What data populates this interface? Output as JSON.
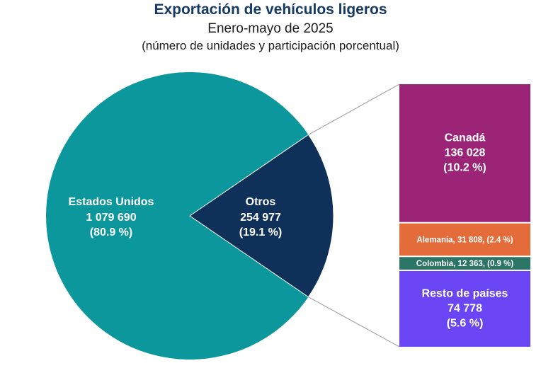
{
  "title": "Exportación de vehículos ligeros",
  "subtitle": "Enero-mayo de 2025",
  "subtitle2": "(número de unidades y participación porcentual)",
  "chart_data": [
    {
      "type": "pie",
      "title": "Exportación de vehículos ligeros",
      "slices": [
        {
          "name": "Estados Unidos",
          "value": 1079690,
          "label_value": "1 079 690",
          "label_pct": "(80.9 %)",
          "percent": 80.9,
          "color": "#0b979c"
        },
        {
          "name": "Otros",
          "value": 254977,
          "label_value": "254 977",
          "label_pct": "(19.1 %)",
          "percent": 19.1,
          "color": "#0e3059"
        }
      ]
    },
    {
      "type": "bar",
      "stacked": true,
      "breakdown_of": "Otros",
      "segments": [
        {
          "name": "Canadá",
          "value": 136028,
          "label_value": "136 028",
          "label_pct": "(10.2 %)",
          "percent": 10.2,
          "color": "#9b2476"
        },
        {
          "name": "Alemania",
          "value": 31808,
          "label_inline": "Alemania, 31 808, (2.4 %)",
          "percent": 2.4,
          "color": "#e46c3a"
        },
        {
          "name": "Colombia",
          "value": 12363,
          "label_inline": "Colombia,  12 363, (0.9 %)",
          "percent": 0.9,
          "color": "#2a7565"
        },
        {
          "name": "Resto de países",
          "value": 74778,
          "label_value": "74 778",
          "label_pct": "(5.6 %)",
          "percent": 5.6,
          "color": "#6a45f3"
        }
      ]
    }
  ]
}
